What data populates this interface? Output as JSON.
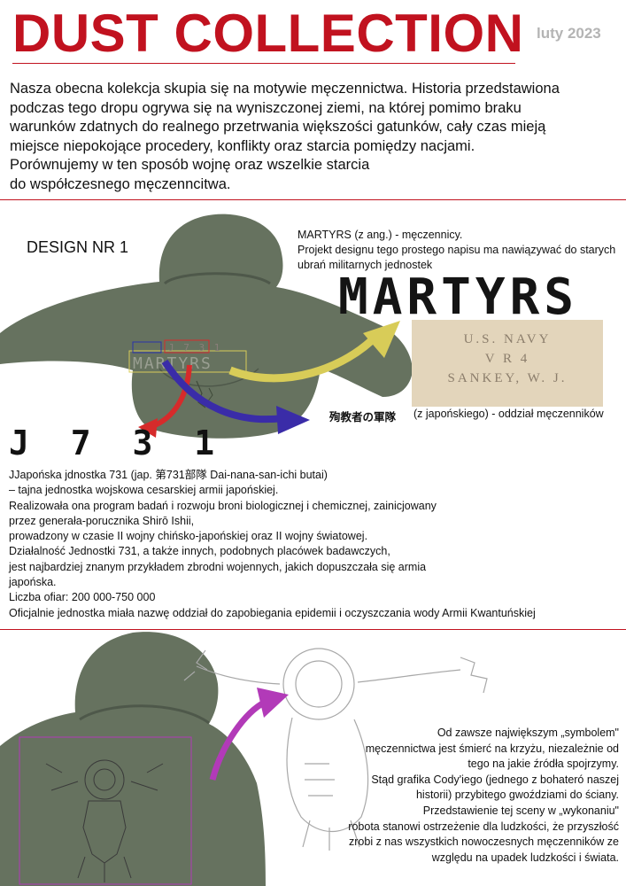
{
  "header": {
    "title": "DUST COLLECTION",
    "date": "luty 2023"
  },
  "intro": {
    "lines": [
      "Nasza obecna kolekcja skupia się na motywie męczennictwa. Historia przedstawiona",
      "podczas tego dropu ogrywa się na wyniszczonej ziemi, na której pomimo braku",
      "warunków zdatnych do realnego przetrwania większości gatunków, cały czas mieją",
      "miejsce niepokojące procedery, konflikty oraz starcia pomiędzy nacjami.",
      "Porównujemy w ten sposób wojnę oraz wszelkie starcia",
      "do współczesnego męczenncitwa."
    ]
  },
  "design1": {
    "label": "DESIGN NR 1",
    "martyrs_desc": [
      "MARTYRS (z ang.) - męczennicy.",
      "Projekt designu tego prostego napisu ma nawiązywać do starych",
      "ubrań militarnych jednostek"
    ],
    "martyrs_stencil": "MARTYRS",
    "navy_stamp": [
      "U.S. NAVY",
      "V R 4",
      "SANKEY, W. J."
    ],
    "hoodie_print": {
      "small": "J 7 3 1",
      "big": "MARTYRS"
    },
    "japanese_text": "殉教者の軍隊",
    "japanese_desc": "(z japońskiego) - oddział męczenników",
    "j731": "J 7 3 1",
    "j731_lines": [
      "JJapońska jdnostka 731 (jap. 第731部隊 Dai-nana-san-ichi butai)",
      "– tajna jednostka wojskowa cesarskiej armii japońskiej.",
      "Realizowała ona program badań i rozwoju broni biologicznej i chemicznej, zainicjowany",
      "przez generała-porucznika Shirō Ishii,",
      "prowadzony w czasie II wojny chińsko-japońskiej oraz II wojny światowej.",
      "Działalność Jednostki 731, a także innych, podobnych placówek badawczych,",
      "jest najbardziej znanym przykładem zbrodni wojennych, jakich dopuszczała się armia",
      "japońska.",
      "Liczba ofiar: 200 000-750 000",
      "Oficjalnie jednostka miała nazwę oddział do zapobiegania epidemii i oczyszczania wody Armii Kwantuńskiej"
    ]
  },
  "design2": {
    "lines": [
      "Od zawsze największym „symbolem\"",
      "męczennictwa jest śmierć na krzyżu, niezależnie od",
      "tego na jakie źródła spojrzymy.",
      "Stąd grafika Cody'iego (jednego z bohateró naszej",
      "historii) przybitego gwoździami do ściany.",
      "Przedstawienie tej sceny w „wykonaniu\"",
      "robota stanowi ostrzeżenie dla ludzkości, że przyszłość",
      "zrobi z nas wszystkich nowoczesnych męczenników ze",
      "względu na upadek ludzkości i świata."
    ]
  },
  "colors": {
    "title_red": "#c1121f",
    "hoodie_green": "#66725f",
    "arrow_yellow": "#d8cc58",
    "arrow_red": "#d62b2b",
    "arrow_blue": "#3a2ca8",
    "arrow_purple": "#b23ab8"
  }
}
